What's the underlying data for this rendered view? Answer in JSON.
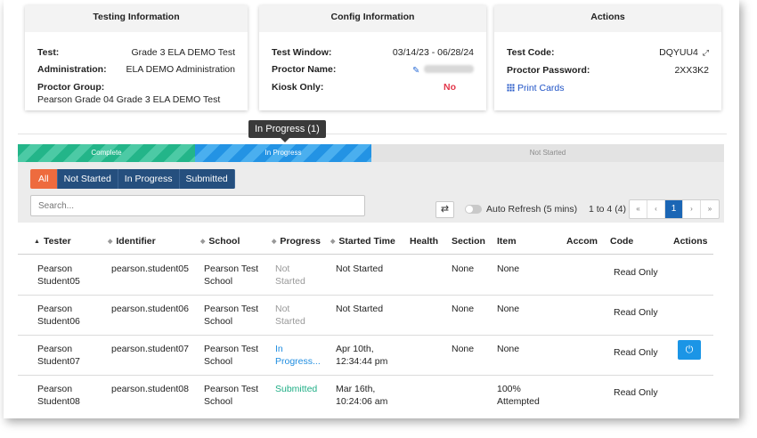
{
  "testing_info": {
    "title": "Testing Information",
    "test_label": "Test:",
    "test_value": "Grade 3 ELA DEMO Test",
    "admin_label": "Administration:",
    "admin_value": "ELA DEMO Administration",
    "group_label": "Proctor Group:",
    "group_value": "Pearson Grade 04 Grade 3 ELA DEMO Test"
  },
  "config_info": {
    "title": "Config Information",
    "window_label": "Test Window:",
    "window_value": "03/14/23 - 06/28/24",
    "proctor_label": "Proctor Name:",
    "kiosk_label": "Kiosk Only:",
    "kiosk_value": "No"
  },
  "actions_info": {
    "title": "Actions",
    "code_label": "Test Code:",
    "code_value": "DQYUU4",
    "password_label": "Proctor Password:",
    "password_value": "2XX3K2",
    "print_cards": "Print Cards"
  },
  "tooltip": "In Progress (1)",
  "progress_band": {
    "complete": "Complete",
    "in_progress": "In Progress",
    "not_started": "Not Started"
  },
  "filters": [
    "All",
    "Not Started",
    "In Progress",
    "Submitted"
  ],
  "search": {
    "placeholder": "Search..."
  },
  "auto_refresh": "Auto Refresh (5 mins)",
  "pagination": {
    "count": "1 to 4 (4)",
    "first": "«",
    "prev": "‹",
    "current": "1",
    "next": "›",
    "last": "»"
  },
  "table": {
    "headers": [
      "Tester",
      "Identifier",
      "School",
      "Progress",
      "Started Time",
      "Health",
      "Section",
      "Item",
      "Accom",
      "Code",
      "Actions"
    ],
    "rows": [
      {
        "tester": "Pearson\nStudent05",
        "identifier": "pearson.student05",
        "school": "Pearson Test\nSchool",
        "progress": "Not\nStarted",
        "started": "Not Started",
        "section": "None",
        "item": "None",
        "code": "Read Only"
      },
      {
        "tester": "Pearson\nStudent06",
        "identifier": "pearson.student06",
        "school": "Pearson Test\nSchool",
        "progress": "Not\nStarted",
        "started": "Not Started",
        "section": "None",
        "item": "None",
        "code": "Read Only"
      },
      {
        "tester": "Pearson\nStudent07",
        "identifier": "pearson.student07",
        "school": "Pearson Test\nSchool",
        "progress": "In\nProgress...",
        "started": "Apr 10th,\n12:34:44 pm",
        "section": "None",
        "item": "None",
        "code": "Read Only"
      },
      {
        "tester": "Pearson\nStudent08",
        "identifier": "pearson.student08",
        "school": "Pearson Test\nSchool",
        "progress": "Submitted",
        "started": "Mar 16th,\n10:24:06 am",
        "section": "",
        "item": "100%\nAttempted",
        "code": "Read Only"
      }
    ]
  },
  "colors": {
    "complete": "#23b589",
    "in_progress": "#2393e4",
    "filter_active": "#ee6b3e",
    "filter": "#254f7e",
    "pager_current": "#1b66b5",
    "no_red": "#e2374a"
  }
}
